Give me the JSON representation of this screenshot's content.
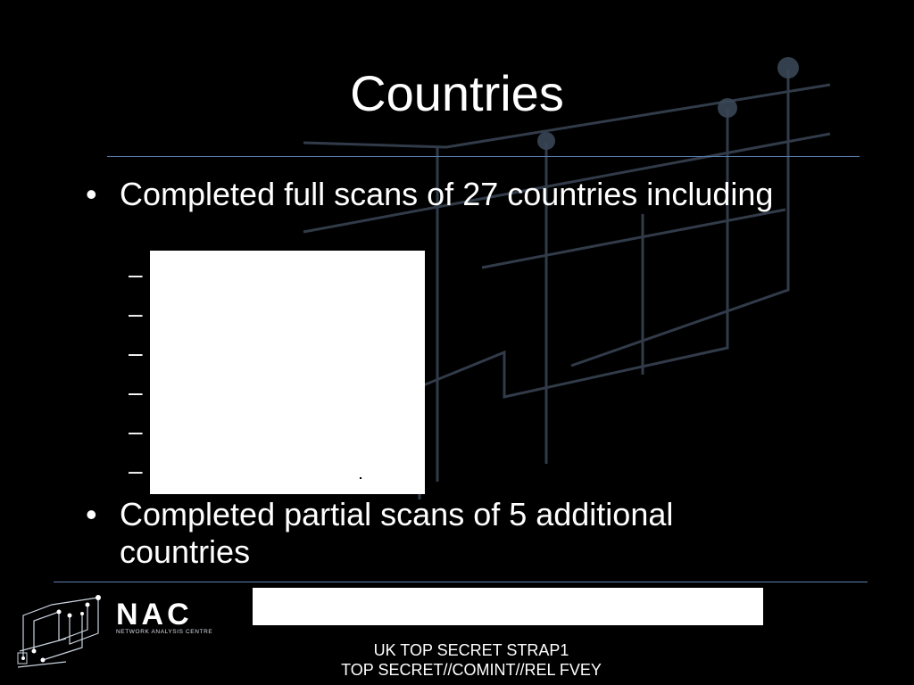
{
  "slide": {
    "title": "Countries",
    "bullets": [
      "Completed full scans of 27 countries including",
      "Completed  partial scans of 5 additional countries"
    ],
    "dash_glyph": "–",
    "dash_count": 6
  },
  "logo": {
    "wordmark": "NAC",
    "subtitle": "NETWORK ANALYSIS CENTRE"
  },
  "classification": {
    "line1": "UK TOP SECRET STRAP1",
    "line2": "TOP SECRET//COMINT//REL FVEY"
  },
  "colors": {
    "background": "#000000",
    "text": "#ffffff",
    "rule": "#5a7fb0",
    "circuit": "#3a4656"
  }
}
